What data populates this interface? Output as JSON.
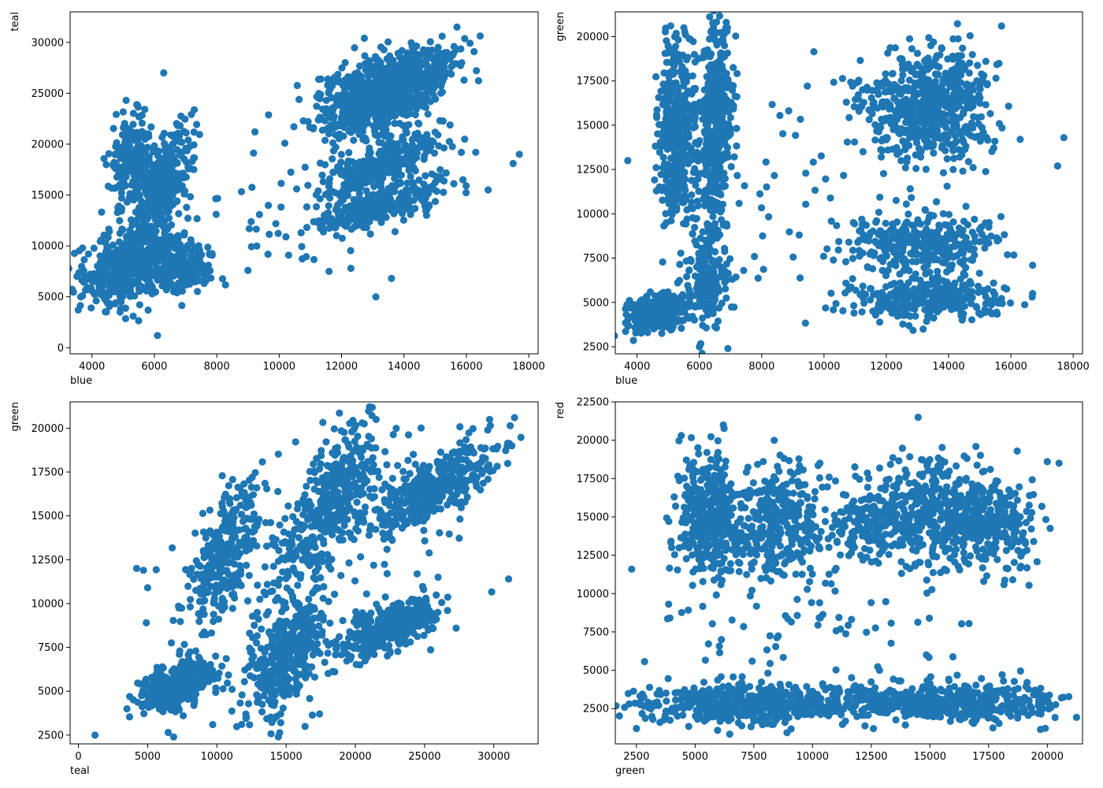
{
  "figure": {
    "background": "#ffffff",
    "marker_color": "#1f77b4"
  },
  "chart_data": [
    {
      "type": "scatter",
      "xlabel": "blue",
      "ylabel": "teal",
      "xlim": [
        3300,
        18300
      ],
      "ylim": [
        -600,
        33000
      ],
      "xticks": [
        4000,
        6000,
        8000,
        10000,
        12000,
        14000,
        16000,
        18000
      ],
      "yticks": [
        0,
        5000,
        10000,
        15000,
        20000,
        25000,
        30000
      ],
      "clusters": [
        {
          "cx": 5300,
          "cy": 18000,
          "sx": 380,
          "sy": 2300,
          "n": 260
        },
        {
          "cx": 6300,
          "cy": 16000,
          "sx": 450,
          "sy": 2800,
          "n": 320,
          "rho": 0.6
        },
        {
          "cx": 5300,
          "cy": 8300,
          "sx": 750,
          "sy": 1900,
          "n": 520,
          "rho": 0.4
        },
        {
          "cx": 6700,
          "cy": 8000,
          "sx": 650,
          "sy": 1200,
          "n": 200
        },
        {
          "cx": 13000,
          "cy": 24500,
          "sx": 900,
          "sy": 2000,
          "n": 620,
          "rho": 0.35
        },
        {
          "cx": 14300,
          "cy": 26500,
          "sx": 700,
          "sy": 1500,
          "n": 320,
          "rho": 0.5
        },
        {
          "cx": 13300,
          "cy": 18000,
          "sx": 900,
          "sy": 1400,
          "n": 300,
          "rho": 0.7
        },
        {
          "cx": 13300,
          "cy": 14000,
          "sx": 1000,
          "sy": 1200,
          "n": 320,
          "rho": 0.7
        },
        {
          "cx": 10000,
          "cy": 14000,
          "sx": 2000,
          "sy": 4000,
          "n": 70,
          "rho": 0.5
        }
      ],
      "points": [
        [
          3700,
          9800
        ],
        [
          3700,
          5100
        ],
        [
          6100,
          1200
        ],
        [
          6300,
          27000
        ],
        [
          15700,
          31500
        ],
        [
          16300,
          19200
        ],
        [
          16700,
          15500
        ],
        [
          17500,
          18100
        ],
        [
          17700,
          19000
        ],
        [
          13100,
          5000
        ],
        [
          4900,
          3500
        ],
        [
          5800,
          3700
        ],
        [
          13600,
          6800
        ],
        [
          9000,
          7600
        ],
        [
          11600,
          7500
        ],
        [
          12300,
          7800
        ]
      ]
    },
    {
      "type": "scatter",
      "xlabel": "blue",
      "ylabel": "green",
      "xlim": [
        3300,
        18300
      ],
      "ylim": [
        2100,
        21400
      ],
      "xticks": [
        4000,
        6000,
        8000,
        10000,
        12000,
        14000,
        16000,
        18000
      ],
      "yticks": [
        2500,
        5000,
        7500,
        10000,
        12500,
        15000,
        17500,
        20000
      ],
      "clusters": [
        {
          "cx": 5300,
          "cy": 14500,
          "sx": 300,
          "sy": 2700,
          "n": 420
        },
        {
          "cx": 4700,
          "cy": 4500,
          "sx": 500,
          "sy": 500,
          "n": 320,
          "rho": 0.3
        },
        {
          "cx": 6500,
          "cy": 14500,
          "sx": 280,
          "sy": 3000,
          "n": 420,
          "rho": 0.3
        },
        {
          "cx": 6300,
          "cy": 6500,
          "sx": 300,
          "sy": 1500,
          "n": 200
        },
        {
          "cx": 12600,
          "cy": 16000,
          "sx": 900,
          "sy": 1500,
          "n": 300
        },
        {
          "cx": 14000,
          "cy": 16200,
          "sx": 700,
          "sy": 1800,
          "n": 320
        },
        {
          "cx": 13000,
          "cy": 8300,
          "sx": 1300,
          "sy": 900,
          "n": 320
        },
        {
          "cx": 13300,
          "cy": 5200,
          "sx": 1200,
          "sy": 600,
          "n": 320
        },
        {
          "cx": 8500,
          "cy": 11000,
          "sx": 1700,
          "sy": 4000,
          "n": 55
        }
      ],
      "points": [
        [
          6000,
          2500
        ],
        [
          5500,
          20500
        ],
        [
          6900,
          20500
        ],
        [
          15700,
          20600
        ],
        [
          16300,
          14200
        ],
        [
          17500,
          12700
        ],
        [
          17700,
          14300
        ],
        [
          16700,
          7100
        ],
        [
          16700,
          5500
        ],
        [
          3700,
          13000
        ],
        [
          3700,
          4000
        ]
      ]
    },
    {
      "type": "scatter",
      "xlabel": "teal",
      "ylabel": "green",
      "xlim": [
        -600,
        33200
      ],
      "ylim": [
        2000,
        21500
      ],
      "xticks": [
        0,
        5000,
        10000,
        15000,
        20000,
        25000,
        30000
      ],
      "yticks": [
        2500,
        5000,
        7500,
        10000,
        12500,
        15000,
        17500,
        20000
      ],
      "clusters": [
        {
          "cx": 7000,
          "cy": 5300,
          "sx": 1300,
          "sy": 700,
          "n": 380,
          "rho": 0.4
        },
        {
          "cx": 10500,
          "cy": 13000,
          "sx": 1500,
          "sy": 2000,
          "n": 300,
          "rho": 0.6
        },
        {
          "cx": 15000,
          "cy": 7000,
          "sx": 1500,
          "sy": 1700,
          "n": 400,
          "rho": 0.5
        },
        {
          "cx": 18000,
          "cy": 15500,
          "sx": 2000,
          "sy": 2500,
          "n": 420,
          "rho": 0.7
        },
        {
          "cx": 25500,
          "cy": 16500,
          "sx": 2200,
          "sy": 1300,
          "n": 400,
          "rho": 0.7
        },
        {
          "cx": 22500,
          "cy": 8600,
          "sx": 1800,
          "sy": 900,
          "n": 320,
          "rho": 0.6
        },
        {
          "cx": 16000,
          "cy": 10000,
          "sx": 6000,
          "sy": 4000,
          "n": 90,
          "rho": 0.5
        }
      ],
      "points": [
        [
          1200,
          2500
        ],
        [
          3500,
          4000
        ],
        [
          3700,
          4700
        ],
        [
          4200,
          12000
        ],
        [
          4700,
          11900
        ],
        [
          5000,
          10900
        ],
        [
          4900,
          8900
        ],
        [
          9700,
          3100
        ],
        [
          20500,
          20300
        ],
        [
          21500,
          20500
        ],
        [
          31500,
          20600
        ],
        [
          29700,
          20500
        ]
      ]
    },
    {
      "type": "scatter",
      "xlabel": "green",
      "ylabel": "red",
      "xlim": [
        1600,
        21500
      ],
      "ylim": [
        200,
        22500
      ],
      "xticks": [
        2500,
        5000,
        7500,
        10000,
        12500,
        15000,
        17500,
        20000
      ],
      "yticks": [
        2500,
        5000,
        7500,
        10000,
        12500,
        15000,
        17500,
        20000,
        22500
      ],
      "clusters": [
        {
          "cx": 5700,
          "cy": 15000,
          "sx": 700,
          "sy": 2000,
          "n": 420
        },
        {
          "cx": 8700,
          "cy": 14500,
          "sx": 900,
          "sy": 2000,
          "n": 320
        },
        {
          "cx": 14800,
          "cy": 15500,
          "sx": 1600,
          "sy": 1700,
          "n": 420
        },
        {
          "cx": 17500,
          "cy": 14500,
          "sx": 1100,
          "sy": 1400,
          "n": 260
        },
        {
          "cx": 12500,
          "cy": 14300,
          "sx": 1000,
          "sy": 1000,
          "n": 120
        },
        {
          "cx": 7000,
          "cy": 2800,
          "sx": 2200,
          "sy": 600,
          "n": 520
        },
        {
          "cx": 15500,
          "cy": 2900,
          "sx": 2800,
          "sy": 600,
          "n": 520
        },
        {
          "cx": 10000,
          "cy": 8500,
          "sx": 4000,
          "sy": 3500,
          "n": 110
        }
      ],
      "points": [
        [
          2500,
          1200
        ],
        [
          14500,
          21500
        ],
        [
          6200,
          21000
        ],
        [
          4000,
          13000
        ],
        [
          20000,
          18600
        ],
        [
          20500,
          18500
        ],
        [
          20600,
          3200
        ],
        [
          3500,
          1600
        ],
        [
          3200,
          1800
        ]
      ]
    }
  ]
}
